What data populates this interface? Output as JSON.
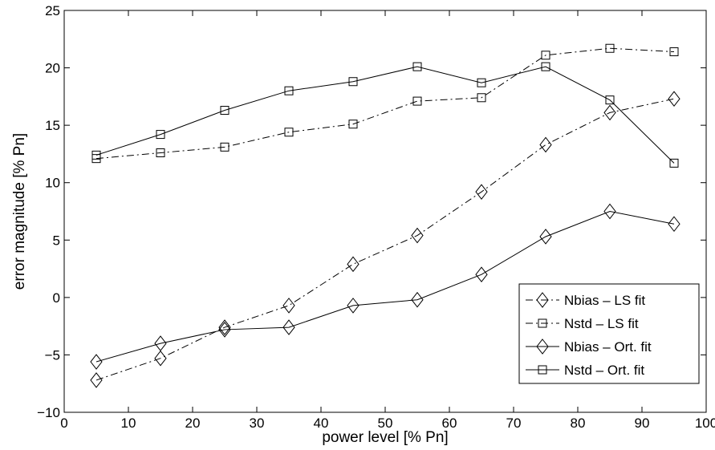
{
  "chart_data": {
    "type": "line",
    "xlabel": "power level [% Pn]",
    "ylabel": "error magnitude [% Pn]",
    "xlim": [
      0,
      100
    ],
    "ylim": [
      -10,
      25
    ],
    "xticks": [
      0,
      10,
      20,
      30,
      40,
      50,
      60,
      70,
      80,
      90,
      100
    ],
    "yticks": [
      -10,
      -5,
      0,
      5,
      10,
      15,
      20,
      25
    ],
    "grid": false,
    "legend_position": "bottom-right",
    "x": [
      5,
      15,
      25,
      35,
      45,
      55,
      65,
      75,
      85,
      95
    ],
    "series": [
      {
        "name": "Nbias – LS fit",
        "marker": "diamond",
        "line_style": "dash-dot",
        "values": [
          -7.2,
          -5.3,
          -2.6,
          -0.7,
          2.9,
          5.4,
          9.2,
          13.3,
          16.1,
          17.3
        ]
      },
      {
        "name": "Nstd – LS fit",
        "marker": "square",
        "line_style": "dash-dot",
        "values": [
          12.1,
          12.6,
          13.1,
          14.4,
          15.1,
          17.1,
          17.4,
          21.1,
          21.7,
          21.4
        ]
      },
      {
        "name": "Nbias – Ort. fit",
        "marker": "diamond",
        "line_style": "solid",
        "values": [
          -5.6,
          -4.0,
          -2.8,
          -2.6,
          -0.7,
          -0.2,
          2.0,
          5.3,
          7.5,
          6.4
        ]
      },
      {
        "name": "Nstd – Ort. fit",
        "marker": "square",
        "line_style": "solid",
        "values": [
          12.4,
          14.2,
          16.3,
          18.0,
          18.8,
          20.1,
          18.7,
          20.1,
          17.2,
          11.7
        ]
      }
    ],
    "colors": {
      "line": "#000000",
      "background": "#ffffff"
    }
  }
}
